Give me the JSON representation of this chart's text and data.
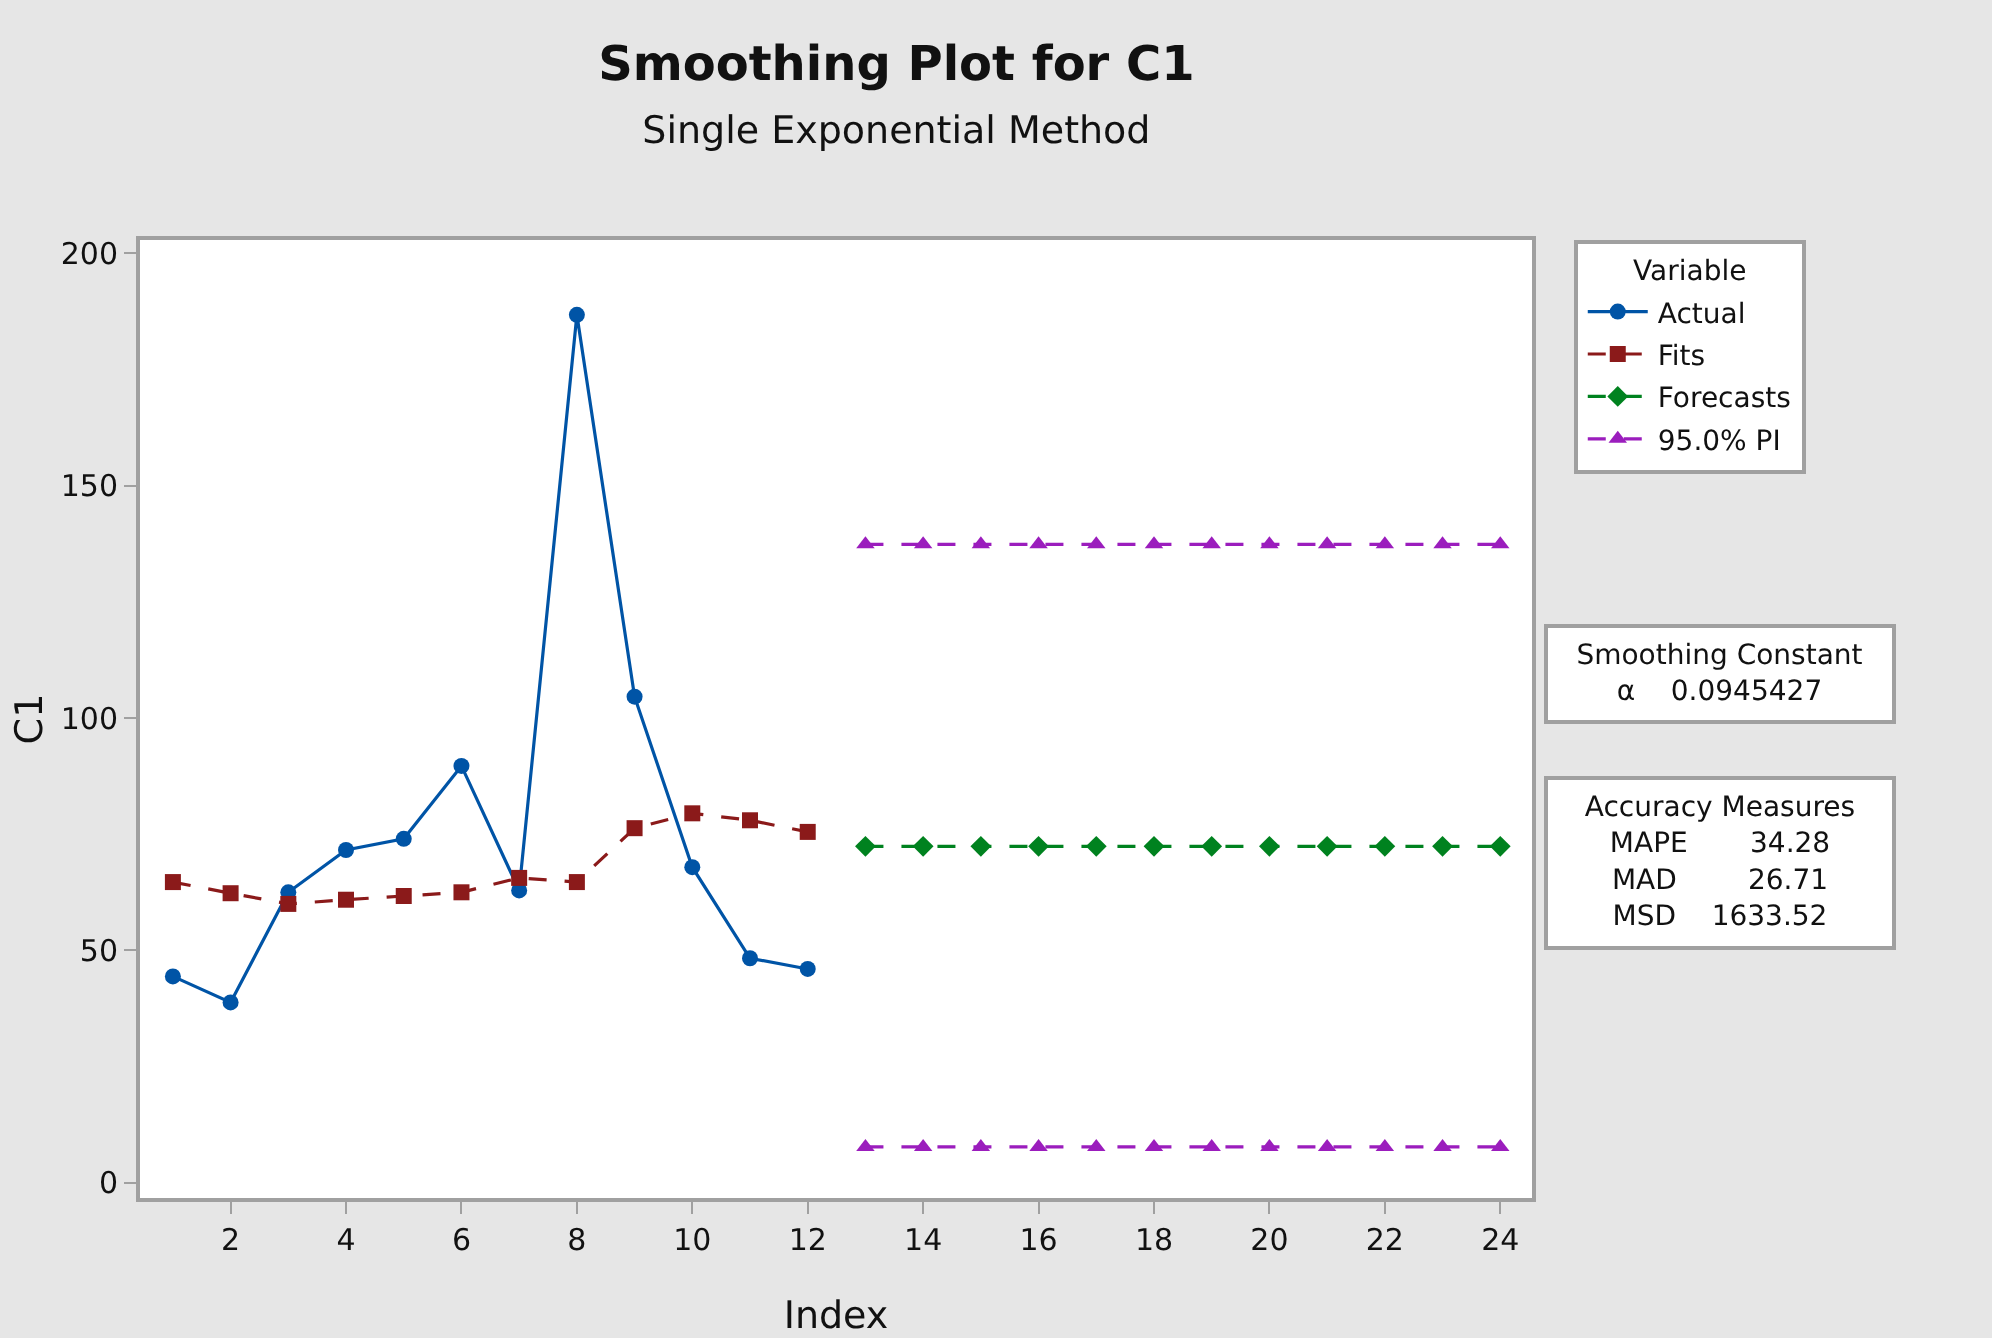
{
  "chart_data": {
    "type": "line",
    "title": "Smoothing Plot for C1",
    "subtitle": "Single Exponential Method",
    "xlabel": "Index",
    "ylabel": "C1",
    "legend_title": "Variable",
    "xlim": [
      0.43,
      24.55
    ],
    "xticks": [
      2,
      4,
      6,
      8,
      10,
      12,
      14,
      16,
      18,
      20,
      22,
      24
    ],
    "ylim": [
      -3.3,
      202.9
    ],
    "yticks": [
      0,
      50,
      100,
      150,
      200
    ],
    "grid": false,
    "legend": "right",
    "series": [
      {
        "name": "Actual",
        "color": "#0054a6",
        "marker": "circle",
        "line_style": "solid",
        "x": [
          1,
          2,
          3,
          4,
          5,
          6,
          7,
          8,
          9,
          10,
          11,
          12
        ],
        "values": [
          44.4,
          38.8,
          62.5,
          71.6,
          74.0,
          89.7,
          62.9,
          186.8,
          104.6,
          67.9,
          48.3,
          46.0
        ]
      },
      {
        "name": "Fits",
        "color": "#8b1a1a",
        "marker": "square",
        "line_style": "dashed",
        "x": [
          1,
          2,
          3,
          4,
          5,
          6,
          7,
          8,
          9,
          10,
          11,
          12
        ],
        "values": [
          64.7,
          62.3,
          60.0,
          60.9,
          61.7,
          62.5,
          65.6,
          64.7,
          76.3,
          79.5,
          78.0,
          75.5
        ]
      },
      {
        "name": "Forecasts",
        "color": "#00821f",
        "marker": "diamond",
        "line_style": "dashed",
        "x": [
          13,
          14,
          15,
          16,
          17,
          18,
          19,
          20,
          21,
          22,
          23,
          24
        ],
        "values": [
          72.4,
          72.4,
          72.4,
          72.4,
          72.4,
          72.4,
          72.4,
          72.4,
          72.4,
          72.4,
          72.4,
          72.4
        ]
      },
      {
        "name": "95.0% PI",
        "color": "#9b1dbd",
        "marker": "triangle",
        "line_style": "dashed",
        "x": [
          13,
          14,
          15,
          16,
          17,
          18,
          19,
          20,
          21,
          22,
          23,
          24
        ],
        "values": [
          137.4,
          137.4,
          137.4,
          137.4,
          137.4,
          137.4,
          137.4,
          137.4,
          137.4,
          137.4,
          137.4,
          137.4
        ]
      },
      {
        "color": "#9b1dbd",
        "marker": "triangle",
        "line_style": "dashed",
        "x": [
          13,
          14,
          15,
          16,
          17,
          18,
          19,
          20,
          21,
          22,
          23,
          24
        ],
        "values": [
          7.7,
          7.7,
          7.7,
          7.7,
          7.7,
          7.7,
          7.7,
          7.7,
          7.7,
          7.7,
          7.7,
          7.7
        ]
      }
    ],
    "annotations": [
      "Smoothing Constant",
      "α    0.0945427",
      "Accuracy Measures",
      "MAPE       34.28",
      "MAD        26.71",
      "MSD    1633.52"
    ]
  }
}
